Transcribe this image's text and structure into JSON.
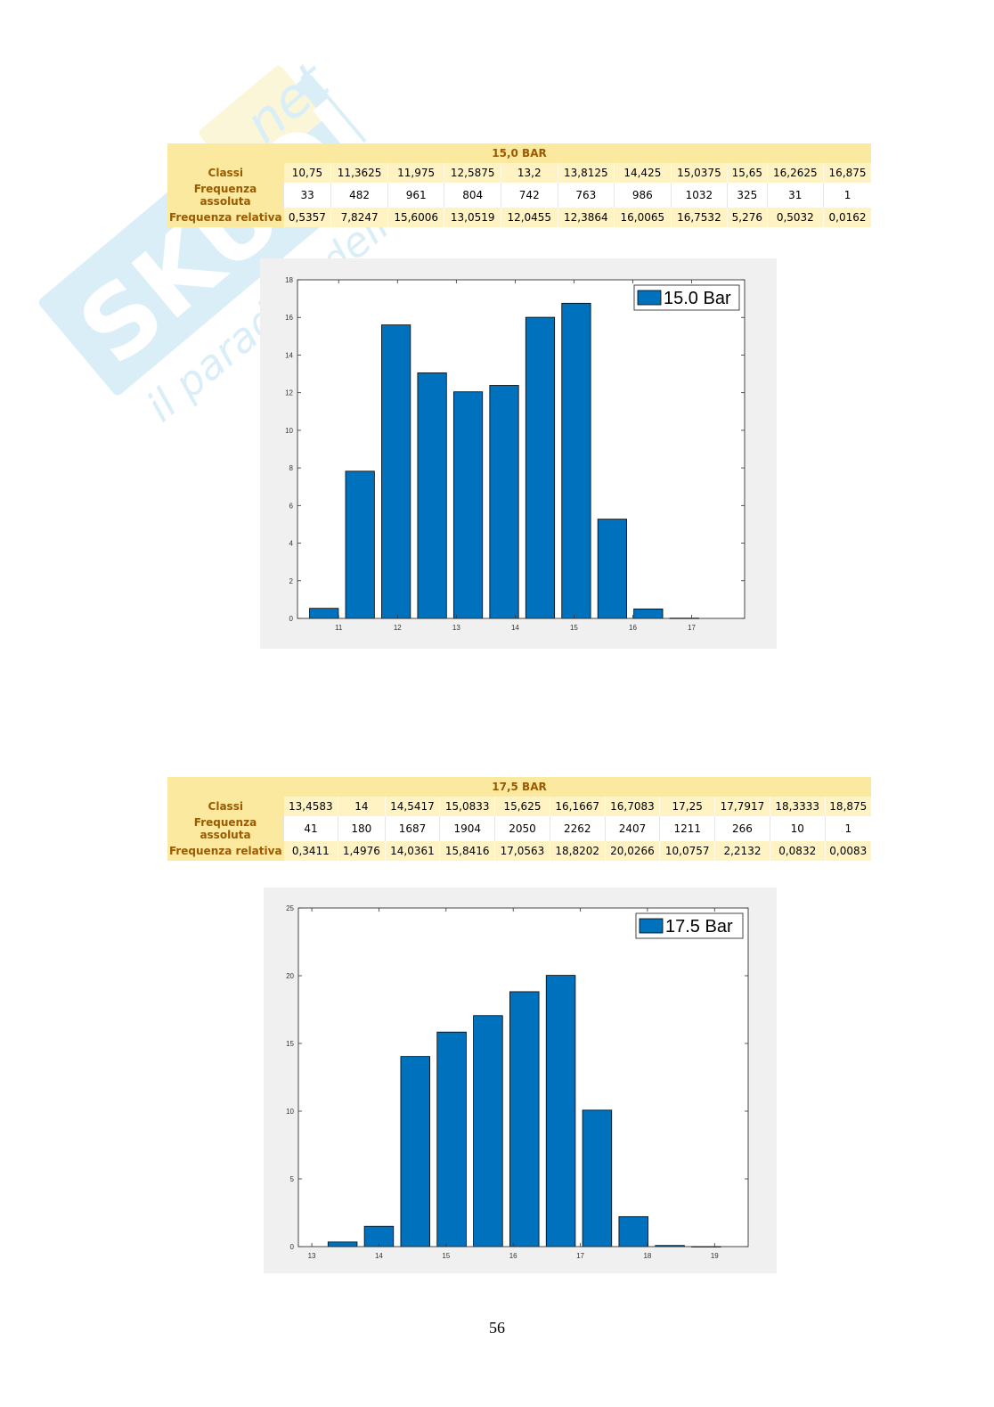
{
  "watermark": {
    "brand": "SKUOLA",
    "suffix": ".net",
    "tagline": "il paradiso dello studente"
  },
  "tables": [
    {
      "title": "15,0 BAR",
      "rows": [
        {
          "label": "Classi",
          "values": [
            "10,75",
            "11,3625",
            "11,975",
            "12,5875",
            "13,2",
            "13,8125",
            "14,425",
            "15,0375",
            "15,65",
            "16,2625",
            "16,875"
          ]
        },
        {
          "label": "Frequenza assoluta",
          "values": [
            "33",
            "482",
            "961",
            "804",
            "742",
            "763",
            "986",
            "1032",
            "325",
            "31",
            "1"
          ]
        },
        {
          "label": "Frequenza relativa",
          "values": [
            "0,5357",
            "7,8247",
            "15,6006",
            "13,0519",
            "12,0455",
            "12,3864",
            "16,0065",
            "16,7532",
            "5,276",
            "0,5032",
            "0,0162"
          ]
        }
      ]
    },
    {
      "title": "17,5 BAR",
      "rows": [
        {
          "label": "Classi",
          "values": [
            "13,4583",
            "14",
            "14,5417",
            "15,0833",
            "15,625",
            "16,1667",
            "16,7083",
            "17,25",
            "17,7917",
            "18,3333",
            "18,875"
          ]
        },
        {
          "label": "Frequenza assoluta",
          "values": [
            "41",
            "180",
            "1687",
            "1904",
            "2050",
            "2262",
            "2407",
            "1211",
            "266",
            "10",
            "1"
          ]
        },
        {
          "label": "Frequenza relativa",
          "values": [
            "0,3411",
            "1,4976",
            "14,0361",
            "15,8416",
            "17,0563",
            "18,8202",
            "20,0266",
            "10,0757",
            "2,2132",
            "0,0832",
            "0,0083"
          ]
        }
      ]
    }
  ],
  "chart_data": [
    {
      "type": "bar",
      "x": [
        10.75,
        11.3625,
        11.975,
        12.5875,
        13.2,
        13.8125,
        14.425,
        15.0375,
        15.65,
        16.2625,
        16.875
      ],
      "values": [
        0.5357,
        7.8247,
        15.6006,
        13.0519,
        12.0455,
        12.3864,
        16.0065,
        16.7532,
        5.276,
        0.5032,
        0.0162
      ],
      "series_name": "15.0 Bar",
      "xlim": [
        10.3,
        17.9
      ],
      "ylim": [
        0,
        18
      ],
      "xticks": [
        11,
        12,
        13,
        14,
        15,
        16,
        17
      ],
      "yticks": [
        0,
        2,
        4,
        6,
        8,
        10,
        12,
        14,
        16,
        18
      ],
      "legend": "top-right",
      "grid": false,
      "color": "#0072bd"
    },
    {
      "type": "bar",
      "x": [
        13.4583,
        14,
        14.5417,
        15.0833,
        15.625,
        16.1667,
        16.7083,
        17.25,
        17.7917,
        18.3333,
        18.875
      ],
      "values": [
        0.3411,
        1.4976,
        14.0361,
        15.8416,
        17.0563,
        18.8202,
        20.0266,
        10.0757,
        2.2132,
        0.0832,
        0.0083
      ],
      "series_name": "17.5 Bar",
      "xlim": [
        12.8,
        19.5
      ],
      "ylim": [
        0,
        25
      ],
      "xticks": [
        13,
        14,
        15,
        16,
        17,
        18,
        19
      ],
      "yticks": [
        0,
        5,
        10,
        15,
        20,
        25
      ],
      "legend": "top-right",
      "grid": false,
      "color": "#0072bd"
    }
  ],
  "page_number": "56"
}
